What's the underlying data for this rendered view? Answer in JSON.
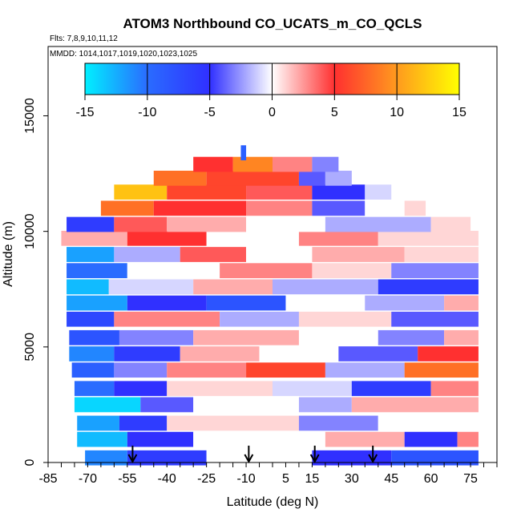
{
  "chart_data": {
    "type": "heatmap",
    "title": "ATOM3 Northbound CO_UCATS_m_CO_QCLS",
    "subtitle_flights": "Flts: 7,8,9,10,11,12",
    "subtitle_dates": "MMDD: 1014,1017,1019,1020,1023,1025",
    "xlabel": "Latitude (deg N)",
    "ylabel": "Altitude (m)",
    "xlim": [
      -85,
      85
    ],
    "ylim": [
      0,
      18000
    ],
    "x_ticks": [
      "-85",
      "-70",
      "-55",
      "-40",
      "-25",
      "-10",
      "5",
      "15",
      "30",
      "45",
      "60",
      "75"
    ],
    "y_ticks": [
      "0",
      "5000",
      "10000",
      "15000"
    ],
    "colorbar": {
      "min": -15,
      "max": 15,
      "ticks": [
        "-15",
        "-10",
        "-5",
        "0",
        "5",
        "10",
        "15"
      ],
      "colors": [
        "#00f0ff",
        "#2a6cff",
        "#3030ff",
        "#ffffff",
        "#ff3030",
        "#ff9a1e",
        "#ffff00"
      ]
    },
    "arrow_latitudes": [
      -53,
      -9,
      16,
      38
    ],
    "layers": [
      {
        "alt": 200,
        "segments": [
          [
            -71,
            -55,
            -11
          ],
          [
            -55,
            -25,
            -6
          ],
          [
            -25,
            15,
            0
          ],
          [
            15,
            45,
            -5
          ],
          [
            45,
            78,
            -8
          ]
        ]
      },
      {
        "alt": 1000,
        "segments": [
          [
            -74,
            -55,
            -13
          ],
          [
            -55,
            -30,
            -5
          ],
          [
            -30,
            20,
            0
          ],
          [
            20,
            50,
            2
          ],
          [
            50,
            70,
            -5
          ],
          [
            70,
            78,
            3
          ]
        ]
      },
      {
        "alt": 1700,
        "segments": [
          [
            -74,
            -58,
            -12
          ],
          [
            -58,
            -40,
            -6
          ],
          [
            -40,
            10,
            1
          ],
          [
            10,
            40,
            -3
          ],
          [
            40,
            78,
            0
          ]
        ]
      },
      {
        "alt": 2500,
        "segments": [
          [
            -75,
            -50,
            -14
          ],
          [
            -50,
            -30,
            -4
          ],
          [
            -30,
            10,
            0
          ],
          [
            10,
            30,
            -2
          ],
          [
            30,
            78,
            2
          ]
        ]
      },
      {
        "alt": 3200,
        "segments": [
          [
            -75,
            -60,
            -10
          ],
          [
            -60,
            -40,
            -5
          ],
          [
            -40,
            0,
            1
          ],
          [
            0,
            30,
            -1
          ],
          [
            30,
            60,
            -6
          ],
          [
            60,
            78,
            3
          ]
        ]
      },
      {
        "alt": 4000,
        "segments": [
          [
            -76,
            -60,
            -9
          ],
          [
            -60,
            -40,
            -3
          ],
          [
            -40,
            -10,
            3
          ],
          [
            -10,
            20,
            6
          ],
          [
            20,
            50,
            -2
          ],
          [
            50,
            78,
            8
          ]
        ]
      },
      {
        "alt": 4700,
        "segments": [
          [
            -77,
            -60,
            -11
          ],
          [
            -60,
            -35,
            -6
          ],
          [
            -35,
            -5,
            2
          ],
          [
            -5,
            25,
            0
          ],
          [
            25,
            55,
            -4
          ],
          [
            55,
            78,
            5
          ]
        ]
      },
      {
        "alt": 5400,
        "segments": [
          [
            -77,
            -58,
            -8
          ],
          [
            -58,
            -30,
            -3
          ],
          [
            -30,
            10,
            2
          ],
          [
            10,
            40,
            0
          ],
          [
            40,
            65,
            -3
          ],
          [
            65,
            78,
            2
          ]
        ]
      },
      {
        "alt": 6200,
        "segments": [
          [
            -78,
            -60,
            -7
          ],
          [
            -60,
            -20,
            3
          ],
          [
            -20,
            10,
            -2
          ],
          [
            10,
            45,
            1
          ],
          [
            45,
            78,
            -4
          ]
        ]
      },
      {
        "alt": 6900,
        "segments": [
          [
            -78,
            -55,
            -12
          ],
          [
            -55,
            -25,
            -5
          ],
          [
            -25,
            5,
            -8
          ],
          [
            5,
            35,
            0
          ],
          [
            35,
            65,
            -2
          ],
          [
            65,
            78,
            2
          ]
        ]
      },
      {
        "alt": 7600,
        "segments": [
          [
            -78,
            -62,
            -13
          ],
          [
            -62,
            -30,
            -1
          ],
          [
            -30,
            0,
            2
          ],
          [
            0,
            40,
            -2
          ],
          [
            40,
            78,
            -6
          ]
        ]
      },
      {
        "alt": 8300,
        "segments": [
          [
            -78,
            -55,
            -10
          ],
          [
            -55,
            -20,
            0
          ],
          [
            -20,
            15,
            3
          ],
          [
            15,
            45,
            1
          ],
          [
            45,
            78,
            -3
          ]
        ]
      },
      {
        "alt": 9000,
        "segments": [
          [
            -78,
            -60,
            -12
          ],
          [
            -60,
            -35,
            -2
          ],
          [
            -35,
            -10,
            4
          ],
          [
            -10,
            15,
            0
          ],
          [
            15,
            50,
            2
          ],
          [
            50,
            78,
            1
          ]
        ]
      },
      {
        "alt": 9700,
        "segments": [
          [
            -80,
            -55,
            2
          ],
          [
            -55,
            -25,
            5
          ],
          [
            -25,
            10,
            0
          ],
          [
            10,
            40,
            3
          ],
          [
            40,
            78,
            1
          ]
        ]
      },
      {
        "alt": 10300,
        "segments": [
          [
            -78,
            -60,
            -6
          ],
          [
            -60,
            -40,
            4
          ],
          [
            -40,
            -10,
            2
          ],
          [
            -10,
            20,
            0
          ],
          [
            20,
            60,
            -2
          ],
          [
            60,
            75,
            1
          ]
        ]
      },
      {
        "alt": 11000,
        "segments": [
          [
            -65,
            -45,
            8
          ],
          [
            -45,
            -10,
            5
          ],
          [
            -10,
            15,
            3
          ],
          [
            15,
            35,
            -4
          ],
          [
            35,
            50,
            0
          ],
          [
            50,
            58,
            1
          ]
        ]
      },
      {
        "alt": 11700,
        "segments": [
          [
            -60,
            -40,
            12
          ],
          [
            -40,
            -10,
            6
          ],
          [
            -10,
            15,
            4
          ],
          [
            15,
            35,
            -5
          ],
          [
            35,
            45,
            -1
          ]
        ]
      },
      {
        "alt": 12300,
        "segments": [
          [
            -45,
            -25,
            8
          ],
          [
            -25,
            10,
            6
          ],
          [
            10,
            20,
            -4
          ],
          [
            20,
            30,
            -2
          ]
        ]
      },
      {
        "alt": 12900,
        "segments": [
          [
            -30,
            -15,
            5
          ],
          [
            -15,
            0,
            9
          ],
          [
            0,
            15,
            3
          ],
          [
            15,
            25,
            -3
          ]
        ]
      },
      {
        "alt": 13400,
        "segments": [
          [
            -12,
            -10,
            -9
          ]
        ]
      }
    ]
  }
}
